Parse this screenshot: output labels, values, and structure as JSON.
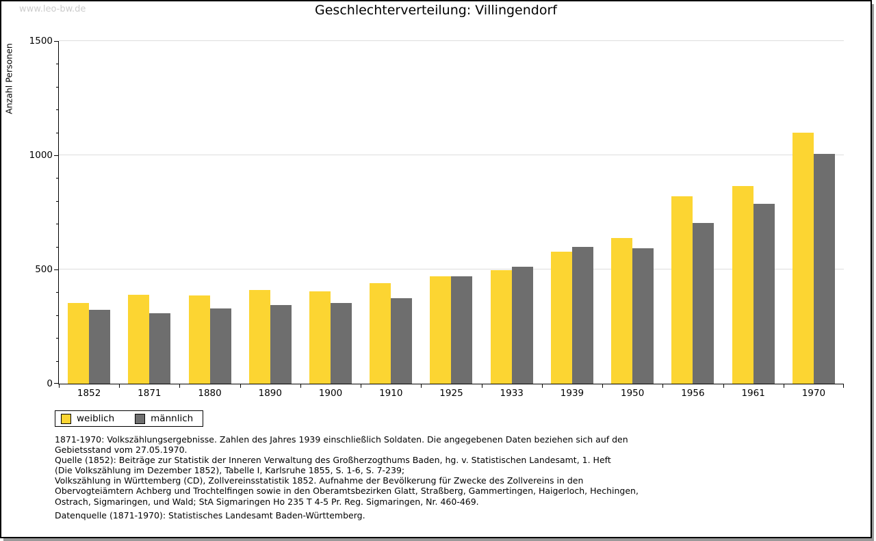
{
  "watermark": "www.leo-bw.de",
  "datasource": "Datenquelle (1871-1970): Statistisches Landesamt Baden-Württemberg.",
  "footnotes": [
    "1871-1970: Volkszählungsergebnisse. Zahlen des Jahres 1939 einschließlich Soldaten. Die angegebenen Daten beziehen sich auf den",
    "Gebietsstand vom 27.05.1970.",
    "Quelle (1852): Beiträge zur Statistik der Inneren Verwaltung des Großherzogthums Baden, hg. v. Statistischen Landesamt, 1. Heft",
    "(Die Volkszählung im Dezember 1852), Tabelle I, Karlsruhe 1855, S. 1-6, S. 7-239;",
    "Volkszählung in Württemberg (CD), Zollvereinsstatistik 1852. Aufnahme der Bevölkerung für Zwecke des Zollvereins in den",
    "Obervogteiämtern Achberg und Trochtelfingen sowie in den Oberamtsbezirken Glatt, Straßberg, Gammertingen, Haigerloch, Hechingen,",
    "Ostrach, Sigmaringen, und Wald; StA Sigmaringen Ho 235 T 4-5 Pr. Reg. Sigmaringen, Nr. 460-469."
  ],
  "chart_data": {
    "type": "bar",
    "title": "Geschlechterverteilung: Villingendorf",
    "xlabel": "",
    "ylabel": "Anzahl Personen",
    "ylim": [
      0,
      1500
    ],
    "yticks": [
      0,
      500,
      1000,
      1500
    ],
    "yminor_step": 100,
    "grid": true,
    "legend_position": "bottom-left",
    "categories": [
      "1852",
      "1871",
      "1880",
      "1890",
      "1900",
      "1910",
      "1925",
      "1933",
      "1939",
      "1950",
      "1956",
      "1961",
      "1970"
    ],
    "series": [
      {
        "name": "weiblich",
        "color": "#fcd532",
        "values": [
          352,
          390,
          387,
          410,
          404,
          439,
          471,
          496,
          579,
          637,
          819,
          864,
          1100
        ]
      },
      {
        "name": "männlich",
        "color": "#6e6e6e",
        "values": [
          322,
          307,
          328,
          345,
          352,
          375,
          471,
          512,
          599,
          592,
          705,
          788,
          1007
        ]
      }
    ]
  }
}
